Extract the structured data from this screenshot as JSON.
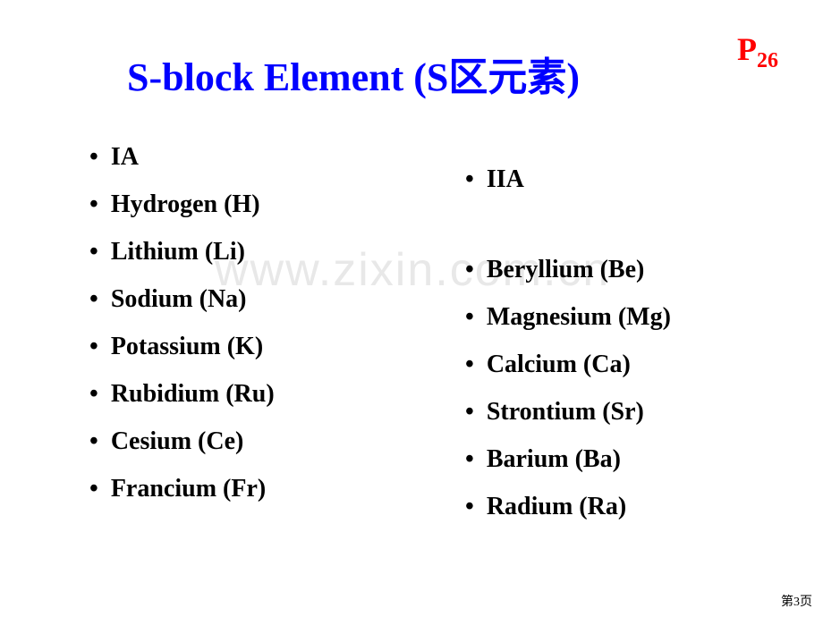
{
  "title": "S-block Element (S区元素)",
  "page_ref_prefix": "P",
  "page_ref_sub": "26",
  "watermark": "www.zixin.com.cn",
  "footer": "第3页",
  "colors": {
    "title": "#0000ff",
    "page_ref": "#ff0000",
    "text": "#000000",
    "watermark": "#e8e8e8",
    "background": "#ffffff"
  },
  "typography": {
    "title_fontsize": 44,
    "page_ref_fontsize": 36,
    "item_fontsize": 28,
    "footer_fontsize": 14,
    "font_family": "Times New Roman"
  },
  "left_column": {
    "items": [
      "IA",
      "Hydrogen (H)",
      "Lithium (Li)",
      "Sodium (Na)",
      "Potassium (K)",
      "Rubidium (Ru)",
      "Cesium (Ce)",
      "Francium (Fr)"
    ]
  },
  "right_column": {
    "header": "IIA",
    "items": [
      "Beryllium (Be)",
      "Magnesium (Mg)",
      "Calcium (Ca)",
      "Strontium (Sr)",
      "Barium (Ba)",
      "Radium (Ra)"
    ]
  }
}
